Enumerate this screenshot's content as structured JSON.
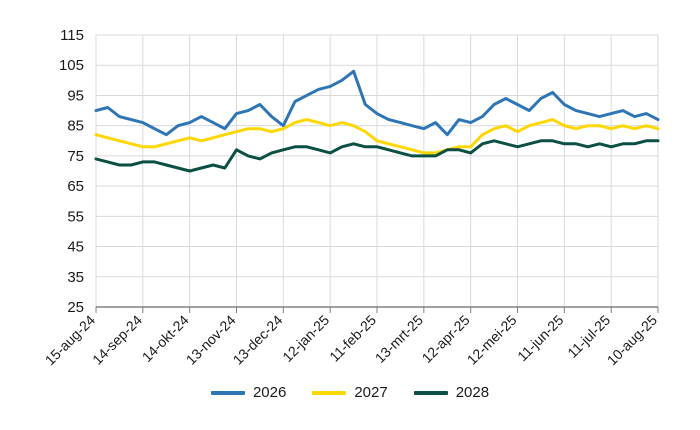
{
  "chart_data": {
    "type": "line",
    "title": "",
    "xlabel": "",
    "ylabel": "",
    "ylim": [
      25,
      115
    ],
    "y_ticks": [
      25,
      35,
      45,
      55,
      65,
      75,
      85,
      95,
      105,
      115
    ],
    "x_tick_labels": [
      "15-aug-24",
      "14-sep-24",
      "14-okt-24",
      "13-nov-24",
      "13-dec-24",
      "12-jan-25",
      "11-feb-25",
      "13-mrt-25",
      "12-apr-25",
      "12-mei-25",
      "11-jun-25",
      "11-jul-25",
      "10-aug-25"
    ],
    "grid": true,
    "legend_placement": "bottom",
    "x_sample_ticks": [
      0,
      0.25,
      0.5,
      0.75,
      1,
      1.25,
      1.5,
      1.75,
      2,
      2.25,
      2.5,
      2.75,
      3,
      3.25,
      3.5,
      3.75,
      4,
      4.25,
      4.5,
      4.75,
      5,
      5.25,
      5.5,
      5.75,
      6,
      6.25,
      6.5,
      6.75,
      7,
      7.25,
      7.5,
      7.75,
      8,
      8.25,
      8.5,
      8.75,
      9,
      9.25,
      9.5,
      9.75,
      10,
      10.25,
      10.5,
      10.75,
      11,
      11.25,
      11.5,
      11.75,
      12
    ],
    "series": [
      {
        "name": "2026",
        "color": "#2e75b6",
        "values": [
          90,
          91,
          88,
          87,
          86,
          84,
          82,
          85,
          86,
          88,
          86,
          84,
          89,
          90,
          92,
          88,
          85,
          93,
          95,
          97,
          98,
          100,
          103,
          92,
          89,
          87,
          86,
          85,
          84,
          86,
          82,
          87,
          86,
          88,
          92,
          94,
          92,
          90,
          94,
          96,
          92,
          90,
          89,
          88,
          89,
          90,
          88,
          89,
          87
        ]
      },
      {
        "name": "2027",
        "color": "#ffd700",
        "values": [
          82,
          81,
          80,
          79,
          78,
          78,
          79,
          80,
          81,
          80,
          81,
          82,
          83,
          84,
          84,
          83,
          84,
          86,
          87,
          86,
          85,
          86,
          85,
          83,
          80,
          79,
          78,
          77,
          76,
          76,
          77,
          78,
          78,
          82,
          84,
          85,
          83,
          85,
          86,
          87,
          85,
          84,
          85,
          85,
          84,
          85,
          84,
          85,
          84
        ]
      },
      {
        "name": "2028",
        "color": "#0b4f45",
        "values": [
          74,
          73,
          72,
          72,
          73,
          73,
          72,
          71,
          70,
          71,
          72,
          71,
          77,
          75,
          74,
          76,
          77,
          78,
          78,
          77,
          76,
          78,
          79,
          78,
          78,
          77,
          76,
          75,
          75,
          75,
          77,
          77,
          76,
          79,
          80,
          79,
          78,
          79,
          80,
          80,
          79,
          79,
          78,
          79,
          78,
          79,
          79,
          80,
          80
        ]
      }
    ]
  }
}
